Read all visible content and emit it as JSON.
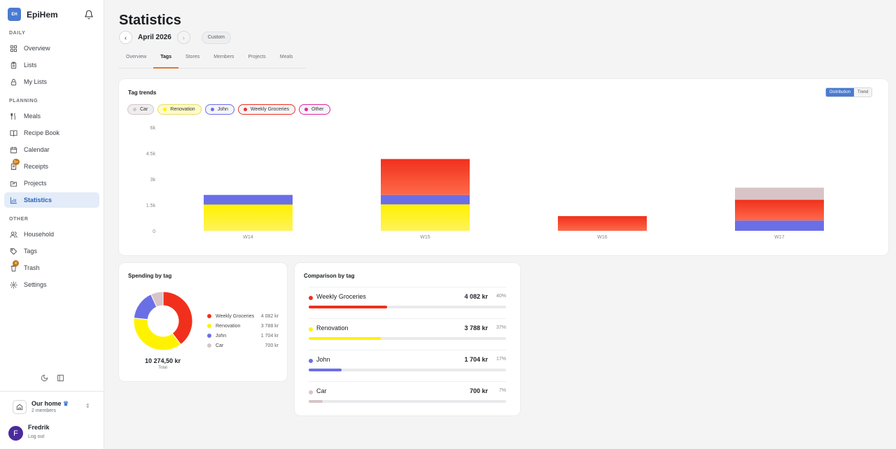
{
  "app": {
    "name": "EpiHem",
    "logo_text": "EH"
  },
  "sidebar": {
    "sections": [
      {
        "label": "DAILY",
        "items": [
          {
            "label": "Overview",
            "icon": "grid-icon"
          },
          {
            "label": "Lists",
            "icon": "clipboard-icon"
          },
          {
            "label": "My Lists",
            "icon": "lock-icon"
          }
        ]
      },
      {
        "label": "PLANNING",
        "items": [
          {
            "label": "Meals",
            "icon": "meal-icon"
          },
          {
            "label": "Recipe Book",
            "icon": "book-icon"
          },
          {
            "label": "Calendar",
            "icon": "calendar-icon"
          },
          {
            "label": "Receipts",
            "icon": "receipt-icon",
            "badge": "9+"
          },
          {
            "label": "Projects",
            "icon": "folder-icon"
          },
          {
            "label": "Statistics",
            "icon": "bar-chart-icon",
            "active": true
          }
        ]
      },
      {
        "label": "OTHER",
        "items": [
          {
            "label": "Household",
            "icon": "users-icon"
          },
          {
            "label": "Tags",
            "icon": "tag-icon"
          },
          {
            "label": "Trash",
            "icon": "trash-icon",
            "badge": "4"
          },
          {
            "label": "Settings",
            "icon": "gear-icon"
          }
        ]
      }
    ],
    "household": {
      "name": "Our home",
      "members": "2 members"
    },
    "user": {
      "initial": "F",
      "name": "Fredrik",
      "logout": "Log out"
    }
  },
  "page": {
    "title": "Statistics",
    "period": "April 2026",
    "custom_label": "Custom",
    "tabs": [
      "Overview",
      "Tags",
      "Stores",
      "Members",
      "Projects",
      "Meals"
    ],
    "active_tab": "Tags"
  },
  "colors": {
    "Car": "#d8c4c6",
    "Renovation": "#fff200",
    "John": "#6b6fe6",
    "Weekly Groceries": "#f0301c",
    "Other": "#e0289c",
    "accent": "#4a7bd0"
  },
  "tag_trends": {
    "title": "Tag trends",
    "toggle": {
      "distribution": "Distribution",
      "trend": "Trend",
      "selected": "Distribution"
    },
    "chips": [
      "Car",
      "Renovation",
      "John",
      "Weekly Groceries",
      "Other"
    ]
  },
  "chart_data": [
    {
      "type": "bar",
      "stacked": true,
      "categories": [
        "W14",
        "W15",
        "W16",
        "W17"
      ],
      "series": [
        {
          "name": "Renovation",
          "values": [
            1520,
            1530,
            0,
            0
          ]
        },
        {
          "name": "John",
          "values": [
            560,
            550,
            0,
            600
          ]
        },
        {
          "name": "Weekly Groceries",
          "values": [
            0,
            2080,
            850,
            1200
          ]
        },
        {
          "name": "Car",
          "values": [
            0,
            0,
            0,
            700
          ]
        }
      ],
      "yticks": [
        "0",
        "1.5k",
        "3k",
        "4.5k",
        "6k"
      ],
      "ylim": [
        0,
        6000
      ],
      "grid": false,
      "xlabel": "",
      "ylabel": ""
    },
    {
      "type": "pie",
      "donut": true,
      "title": "Spending by tag",
      "slices": [
        {
          "name": "Weekly Groceries",
          "value": 4082,
          "label": "4 082 kr"
        },
        {
          "name": "Renovation",
          "value": 3788,
          "label": "3 788 kr"
        },
        {
          "name": "John",
          "value": 1704,
          "label": "1 704 kr"
        },
        {
          "name": "Car",
          "value": 700,
          "label": "700 kr"
        }
      ],
      "total": "10 274,50 kr",
      "total_label": "Total"
    }
  ],
  "comparison": {
    "title": "Comparison by tag",
    "items": [
      {
        "name": "Weekly Groceries",
        "amount": "4 082 kr",
        "pct": "40%",
        "fraction": 0.4
      },
      {
        "name": "Renovation",
        "amount": "3 788 kr",
        "pct": "37%",
        "fraction": 0.37
      },
      {
        "name": "John",
        "amount": "1 704 kr",
        "pct": "17%",
        "fraction": 0.17
      },
      {
        "name": "Car",
        "amount": "700 kr",
        "pct": "7%",
        "fraction": 0.07
      }
    ]
  }
}
